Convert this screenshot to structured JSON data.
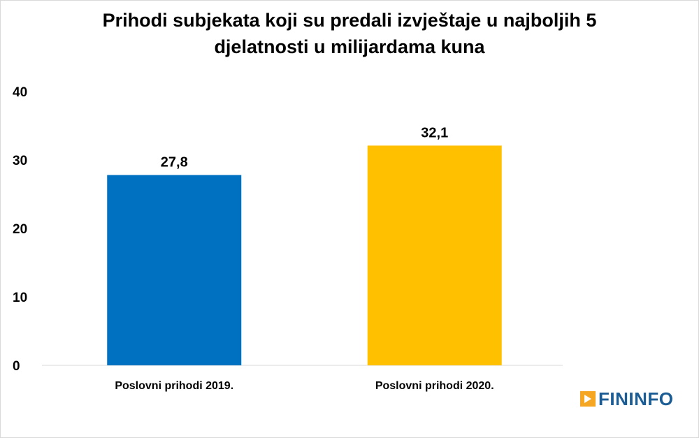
{
  "chart_data": {
    "type": "bar",
    "title": "Prihodi subjekata koji su predali izvještaje u najboljih 5 djelatnosti u milijardama kuna",
    "title_lines": [
      "Prihodi subjekata koji su predali izvještaje u najboljih 5",
      "djelatnosti u milijardama kuna"
    ],
    "categories": [
      "Poslovni prihodi 2019.",
      "Poslovni prihodi 2020."
    ],
    "values": [
      27.8,
      32.1
    ],
    "value_labels": [
      "27,8",
      "32,1"
    ],
    "colors": [
      "#0070c0",
      "#ffc000"
    ],
    "ylim": [
      0,
      40
    ],
    "yticks": [
      0,
      10,
      20,
      30,
      40
    ],
    "xlabel": "",
    "ylabel": "",
    "grid": false
  },
  "logo": {
    "text": "FININFO",
    "color": "#1b5d94",
    "accent": "#f5a623"
  }
}
